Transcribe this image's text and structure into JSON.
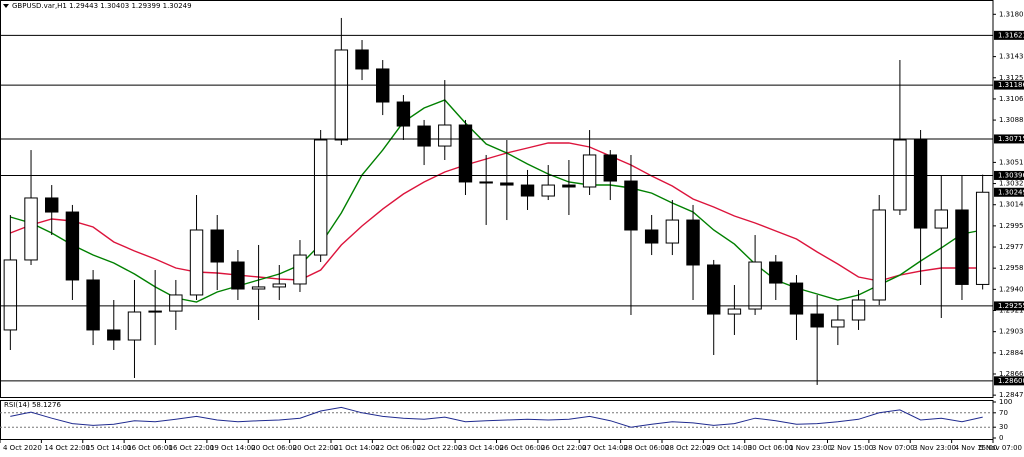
{
  "chart_data": [
    {
      "type": "candlestick",
      "title": "GBPUSD.var,H1  1.29443 1.30403 1.29399 1.30249",
      "xlim": [
        0,
        48
      ],
      "xticks": [
        {
          "value": 0,
          "label": "4 Oct 2020"
        },
        {
          "value": 2,
          "label": "14 Oct 22:00"
        },
        {
          "value": 4,
          "label": "15 Oct 14:00"
        },
        {
          "value": 6,
          "label": "16 Oct 06:00"
        },
        {
          "value": 8,
          "label": "16 Oct 22:00"
        },
        {
          "value": 10,
          "label": "19 Oct 14:00"
        },
        {
          "value": 12,
          "label": "20 Oct 06:00"
        },
        {
          "value": 14,
          "label": "20 Oct 22:00"
        },
        {
          "value": 16,
          "label": "21 Oct 14:00"
        },
        {
          "value": 18,
          "label": "22 Oct 06:00"
        },
        {
          "value": 20,
          "label": "22 Oct 22:00"
        },
        {
          "value": 22,
          "label": "23 Oct 14:00"
        },
        {
          "value": 24,
          "label": "26 Oct 06:00"
        },
        {
          "value": 26,
          "label": "26 Oct 22:00"
        },
        {
          "value": 28,
          "label": "27 Oct 14:00"
        },
        {
          "value": 30,
          "label": "28 Oct 06:00"
        },
        {
          "value": 32,
          "label": "28 Oct 22:00"
        },
        {
          "value": 34,
          "label": "29 Oct 14:00"
        },
        {
          "value": 36,
          "label": "30 Oct 06:00"
        },
        {
          "value": 38,
          "label": "1 Nov 23:00"
        },
        {
          "value": 40,
          "label": "2 Nov 15:00"
        },
        {
          "value": 42,
          "label": "3 Nov 07:00"
        },
        {
          "value": 44,
          "label": "3 Nov 23:00"
        },
        {
          "value": 46,
          "label": "4 Nov 15:00"
        },
        {
          "value": 48,
          "label": "5 Nov 07:00"
        }
      ],
      "ylim": [
        1.2845,
        1.3193
      ],
      "yticks": [
        1.31805,
        1.31435,
        {
          "value": 1.3125,
          "label": "1.31250"
        },
        1.31065,
        {
          "value": 1.3088,
          "label": "1.30880"
        },
        {
          "value": 1.3051,
          "label": "1.30510"
        },
        1.30325,
        {
          "value": 1.3014,
          "label": "1.30140"
        },
        1.29955,
        {
          "value": 1.2977,
          "label": "1.29770"
        },
        1.29585,
        {
          "value": 1.294,
          "label": "1.29400"
        },
        1.29215,
        {
          "value": 1.2903,
          "label": "1.29030"
        },
        1.28845,
        {
          "value": 1.2866,
          "label": "1.28660"
        },
        1.28475
      ],
      "levels": [
        1.31621,
        1.31186,
        1.30715,
        1.30396,
        1.29255,
        {
          "value": 1.286,
          "label": "1.28600"
        }
      ],
      "up_color": "#ffffff",
      "down_color": "#000000",
      "wick_color": "#000000",
      "open": [
        1.29045,
        1.29657,
        1.30199,
        1.30076,
        1.29482,
        1.29045,
        1.28957,
        1.29202,
        1.2921,
        1.29351,
        1.29919,
        1.29639,
        1.29403,
        1.29421,
        1.29447,
        1.297,
        1.30706,
        1.31493,
        1.31327,
        1.31038,
        1.30828,
        1.30653,
        1.30837,
        1.30339,
        1.3033,
        1.30312,
        1.30216,
        1.30312,
        1.30295,
        1.30575,
        1.30347,
        1.29919,
        1.29805,
        1.30006,
        1.29613,
        1.29184,
        1.29228,
        1.29639,
        1.29455,
        1.29184,
        1.29071,
        1.29132,
        1.29307,
        1.30094,
        1.30706,
        1.29936,
        1.30094,
        1.29443
      ],
      "high": [
        1.3005,
        1.30618,
        1.30312,
        1.30138,
        1.29569,
        1.29307,
        1.29482,
        1.29569,
        1.29482,
        1.30225,
        1.3005,
        1.29744,
        1.29788,
        1.29613,
        1.29831,
        1.30793,
        1.31773,
        1.3158,
        1.31405,
        1.31099,
        1.30881,
        1.3123,
        1.30881,
        1.30575,
        1.30706,
        1.30444,
        1.30487,
        1.30531,
        1.30793,
        1.30618,
        1.30575,
        1.3005,
        1.30181,
        1.30138,
        1.29657,
        1.29438,
        1.29875,
        1.297,
        1.29525,
        1.29351,
        1.29263,
        1.29394,
        1.30225,
        1.31405,
        1.30793,
        1.304,
        1.304,
        1.30403
      ],
      "low": [
        1.2887,
        1.29613,
        1.29875,
        1.29307,
        1.28913,
        1.2887,
        1.28625,
        1.28913,
        1.29045,
        1.29307,
        1.29394,
        1.29307,
        1.29132,
        1.29307,
        1.29377,
        1.29639,
        1.30662,
        1.3123,
        1.30924,
        1.30706,
        1.30487,
        1.30531,
        1.30225,
        1.29963,
        1.30006,
        1.30094,
        1.30181,
        1.3005,
        1.30225,
        1.30181,
        1.29176,
        1.297,
        1.297,
        1.29307,
        1.28826,
        1.29001,
        1.29176,
        1.29307,
        1.28957,
        1.28564,
        1.28913,
        1.29045,
        1.29263,
        1.3005,
        1.29438,
        1.29149,
        1.29307,
        1.29399
      ],
      "close": [
        1.29657,
        1.30199,
        1.30076,
        1.29482,
        1.29045,
        1.28957,
        1.29202,
        1.2921,
        1.29351,
        1.29919,
        1.29639,
        1.29403,
        1.29421,
        1.29447,
        1.297,
        1.30706,
        1.31493,
        1.31327,
        1.31038,
        1.30828,
        1.30653,
        1.30837,
        1.30339,
        1.3033,
        1.30312,
        1.30216,
        1.30312,
        1.30295,
        1.30575,
        1.30347,
        1.29919,
        1.29805,
        1.30006,
        1.29613,
        1.29184,
        1.29228,
        1.29639,
        1.29455,
        1.29184,
        1.29071,
        1.29132,
        1.29307,
        1.30094,
        1.30706,
        1.29936,
        1.30094,
        1.29443,
        1.30249
      ],
      "series": [
        {
          "color": "#dc143c",
          "values": [
            1.29893,
            1.29963,
            1.30015,
            1.29998,
            1.29945,
            1.29814,
            1.29735,
            1.29665,
            1.29587,
            1.29552,
            1.29543,
            1.29525,
            1.29508,
            1.2949,
            1.29482,
            1.29569,
            1.29788,
            1.29954,
            1.30102,
            1.30234,
            1.30339,
            1.30426,
            1.30487,
            1.3054,
            1.30592,
            1.30636,
            1.3068,
            1.3068,
            1.30645,
            1.30566,
            1.30487,
            1.30391,
            1.30304,
            1.3019,
            1.3012,
            1.30041,
            1.2998,
            1.2991,
            1.2984,
            1.29727,
            1.29622,
            1.29508,
            1.29473,
            1.29525,
            1.2956,
            1.29587,
            1.29587,
            1.29587
          ]
        },
        {
          "color": "#008000",
          "values": [
            1.30033,
            1.2998,
            1.29893,
            1.29788,
            1.297,
            1.2963,
            1.29534,
            1.29421,
            1.29324,
            1.29289,
            1.29377,
            1.29429,
            1.29482,
            1.29534,
            1.29613,
            1.29796,
            1.30068,
            1.304,
            1.30618,
            1.30863,
            1.30986,
            1.31056,
            1.30854,
            1.30671,
            1.30592,
            1.30496,
            1.30409,
            1.30339,
            1.30312,
            1.30312,
            1.30286,
            1.30242,
            1.30155,
            1.30076,
            1.29919,
            1.29796,
            1.29622,
            1.29482,
            1.29412,
            1.29359,
            1.29307,
            1.29351,
            1.29438,
            1.29525,
            1.29648,
            1.29762,
            1.29884,
            1.29919
          ]
        }
      ]
    },
    {
      "type": "line",
      "title": "RSI(14) 58.1276",
      "ylim": [
        0,
        100
      ],
      "yticks": [
        100,
        70,
        30,
        0
      ],
      "color": "#1f2a8f",
      "values": [
        60,
        72,
        55,
        40,
        35,
        38,
        48,
        45,
        52,
        60,
        50,
        45,
        48,
        50,
        55,
        75,
        85,
        70,
        60,
        55,
        52,
        58,
        45,
        48,
        50,
        52,
        50,
        52,
        60,
        48,
        30,
        38,
        45,
        42,
        35,
        40,
        55,
        48,
        38,
        40,
        45,
        52,
        70,
        78,
        50,
        55,
        45,
        58.1276
      ]
    }
  ]
}
